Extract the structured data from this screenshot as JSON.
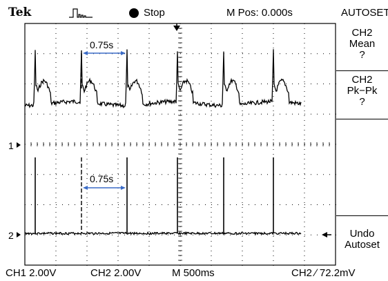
{
  "header": {
    "brand": "Tek",
    "acquisition_state": "Stop",
    "m_pos": "M Pos: 0.000s",
    "menu_title": "AUTOSET"
  },
  "side_menu": {
    "items": [
      {
        "lines": [
          "CH2",
          "Mean",
          "?"
        ]
      },
      {
        "lines": [
          "CH2",
          "Pk−Pk",
          "?"
        ]
      },
      {
        "lines": [
          "Undo",
          "Autoset"
        ]
      }
    ]
  },
  "channel_markers": {
    "ch1": "1",
    "ch2": "2"
  },
  "annotations": {
    "interval_top": "0.75s",
    "interval_bottom": "0.75s"
  },
  "status": {
    "ch1_scale": "CH1  2.00V",
    "ch2_scale": "CH2  2.00V",
    "timebase": "M 500ms",
    "trigger": "CH2 ∕ 72.2mV"
  },
  "colors": {
    "trace": "#000000",
    "arrow": "#3b6cc7",
    "grid": "#000000"
  },
  "icons": {
    "acq": "pulse-train-icon",
    "stop": "stop-dot-icon",
    "trigger_pos": "trigger-position-arrow-icon"
  }
}
